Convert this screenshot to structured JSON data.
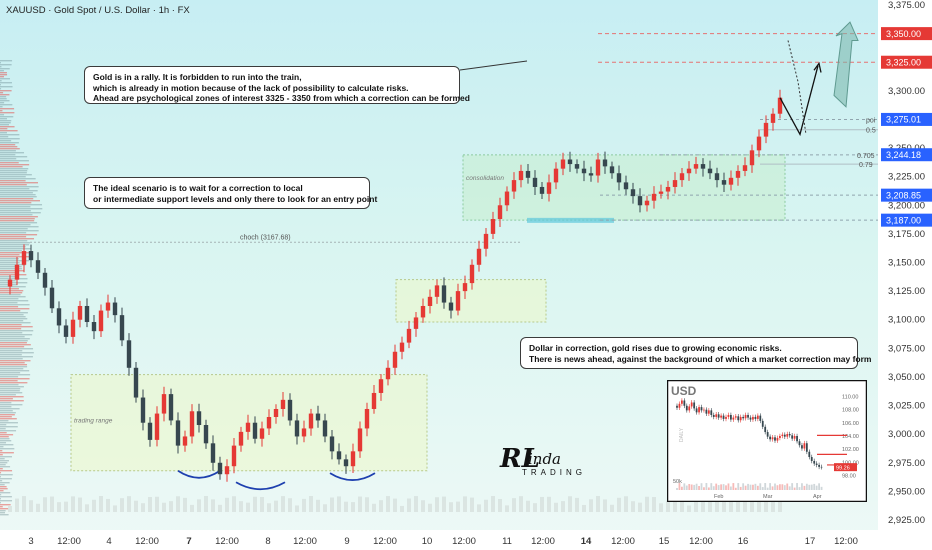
{
  "header": {
    "symbol_line": "XAUUSD · Gold Spot / U.S. Dollar · 1h · FX"
  },
  "notes": {
    "top": [
      "Gold is in a rally. It is forbidden to run into the train,",
      "which is already in motion because of the lack of possibility to calculate risks.",
      "Ahead are psychological zones of interest 3325 - 3350 from which a correction can be formed"
    ],
    "middle": [
      "The ideal scenario is to wait for a correction to local",
      "or intermediate support levels and only there to look for an entry point"
    ],
    "dollar": [
      "Dollar in correction, gold rises due to growing economic risks.",
      "There is news ahead, against the background of which a market correction may form"
    ]
  },
  "labels": {
    "choch": "choch (3167.68)",
    "consolidation": "consolidation",
    "trading_range": "trading range",
    "poi": "poi",
    "fib_05": "0.5",
    "fib_0705": "0.705",
    "fib_079": "0.79"
  },
  "logo": {
    "letters": "RL",
    "name": "inda",
    "sub": "TRADING"
  },
  "price_badges": [
    {
      "value": "3,350.00",
      "price": 3350,
      "color": "#e53935"
    },
    {
      "value": "3,325.00",
      "price": 3325,
      "color": "#e53935"
    },
    {
      "value": "3,275.01",
      "price": 3275.01,
      "color": "#2962ff"
    },
    {
      "value": "3,244.18",
      "price": 3244.18,
      "color": "#2962ff"
    },
    {
      "value": "3,208.85",
      "price": 3208.85,
      "color": "#2962ff"
    },
    {
      "value": "3,187.00",
      "price": 3187,
      "color": "#2962ff"
    }
  ],
  "inset": {
    "title": "USD",
    "y_ticks": [
      "110.00",
      "108.00",
      "106.00",
      "104.00",
      "102.00",
      "100.00",
      "98.00"
    ],
    "x_ticks": [
      "Feb",
      "Mar",
      "Apr"
    ],
    "current_badge": "99.26",
    "volume_label": "50k",
    "side_label": "DAILY",
    "y_range": [
      97,
      111
    ],
    "closes": [
      108.3,
      108.9,
      109.4,
      108.6,
      107.9,
      108.5,
      109.1,
      108.2,
      107.6,
      108.4,
      107.9,
      108.0,
      107.4,
      107.9,
      107.2,
      106.9,
      107.3,
      106.8,
      107.1,
      106.6,
      106.9,
      107.2,
      106.5,
      106.8,
      107.0,
      106.4,
      106.9,
      106.7,
      107.2,
      106.8,
      106.5,
      106.9,
      106.6,
      107.1,
      106.3,
      105.4,
      104.6,
      103.9,
      103.5,
      103.8,
      103.3,
      103.7,
      104.0,
      104.2,
      103.9,
      104.3,
      104.1,
      103.6,
      104.0,
      103.2,
      102.6,
      102.1,
      102.9,
      101.6,
      100.8,
      100.2,
      99.8,
      99.6,
      99.3,
      99.26
    ]
  },
  "chart_data": {
    "type": "candlestick",
    "title": "XAUUSD · Gold Spot / U.S. Dollar · 1h · FX",
    "xlabel": "",
    "ylabel": "",
    "ylim": [
      2922,
      3378
    ],
    "y_ticks": [
      3375,
      3350,
      3325,
      3300,
      3275,
      3250,
      3225,
      3200,
      3175,
      3150,
      3125,
      3100,
      3075,
      3050,
      3025,
      3000,
      2975,
      2950,
      2925
    ],
    "x_ticks": [
      "3",
      "12:00",
      "4",
      "12:00",
      "7",
      "12:00",
      "8",
      "12:00",
      "9",
      "12:00",
      "10",
      "12:00",
      "11",
      "12:00",
      "14",
      "12:00",
      "15",
      "12:00",
      "16",
      "17",
      "12:00"
    ],
    "x_tick_index": [
      0,
      4,
      8,
      12,
      16,
      20,
      24,
      28,
      32,
      36,
      40,
      44,
      48,
      52,
      56,
      60,
      64,
      68,
      72,
      78,
      82
    ],
    "grid": false,
    "close": [
      3135,
      3148,
      3160,
      3152,
      3141,
      3128,
      3110,
      3095,
      3085,
      3100,
      3112,
      3098,
      3090,
      3108,
      3115,
      3104,
      3082,
      3058,
      3032,
      3010,
      2995,
      3018,
      3035,
      3012,
      2990,
      2998,
      3020,
      3008,
      2992,
      2975,
      2965,
      2972,
      2990,
      3002,
      3010,
      2996,
      3005,
      3015,
      3022,
      3030,
      3012,
      2998,
      3005,
      3018,
      3012,
      2998,
      2985,
      2978,
      2972,
      2985,
      3005,
      3022,
      3036,
      3048,
      3058,
      3072,
      3080,
      3092,
      3102,
      3112,
      3120,
      3130,
      3115,
      3108,
      3125,
      3132,
      3148,
      3162,
      3175,
      3188,
      3200,
      3212,
      3222,
      3230,
      3224,
      3216,
      3210,
      3220,
      3232,
      3240,
      3236,
      3232,
      3228,
      3226,
      3240,
      3234,
      3228,
      3220,
      3214,
      3208,
      3200,
      3204,
      3210,
      3212,
      3216,
      3222,
      3228,
      3232,
      3236,
      3232,
      3228,
      3222,
      3218,
      3224,
      3230,
      3235,
      3248,
      3260,
      3272,
      3280,
      3294
    ],
    "projections": {
      "correction_target": 3275.01,
      "upper_targets": [
        3325,
        3350
      ],
      "supports": [
        3244.18,
        3208.85,
        3187
      ]
    }
  }
}
